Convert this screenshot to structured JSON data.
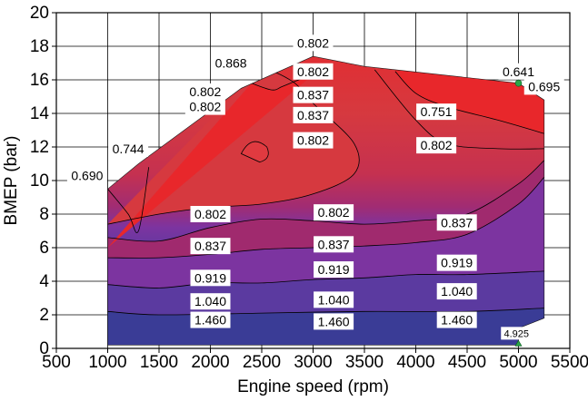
{
  "chart_data": {
    "type": "contour",
    "xlabel": "Engine speed (rpm)",
    "ylabel": "BMEP (bar)",
    "xlim": [
      500,
      5500
    ],
    "ylim": [
      0,
      20
    ],
    "x_ticks": [
      "500",
      "1000",
      "1500",
      "2000",
      "2500",
      "3000",
      "3500",
      "4000",
      "4500",
      "5000",
      "5500"
    ],
    "y_ticks": [
      "0",
      "2",
      "4",
      "6",
      "8",
      "10",
      "12",
      "14",
      "16",
      "18",
      "20"
    ],
    "grid": true,
    "colors": {
      "high": "#e8272b",
      "mid_high": "#d6393f",
      "mid": "#b02a64",
      "mid_low": "#8b2c8a",
      "low_purple": "#7a34a0",
      "low": "#5a3aa0",
      "lowest": "#3a3c96",
      "line": "#000000",
      "marker": "#2aa548"
    },
    "boundary": [
      {
        "x": 1000,
        "y": 9.5
      },
      {
        "x": 1300,
        "y": 11
      },
      {
        "x": 2300,
        "y": 15.5
      },
      {
        "x": 3000,
        "y": 17.4
      },
      {
        "x": 3500,
        "y": 16.8
      },
      {
        "x": 5000,
        "y": 15.8
      },
      {
        "x": 5250,
        "y": 14.8
      },
      {
        "x": 5250,
        "y": 1.8
      },
      {
        "x": 5000,
        "y": 1.2
      },
      {
        "x": 5000,
        "y": 0.2
      },
      {
        "x": 1000,
        "y": 0.2
      }
    ],
    "contours": [
      {
        "level": "1.460",
        "color": "#3a3c96",
        "points": [
          [
            1000,
            2.2
          ],
          [
            1500,
            2.0
          ],
          [
            2500,
            2.1
          ],
          [
            3500,
            2.2
          ],
          [
            4500,
            2.2
          ],
          [
            5250,
            2.4
          ]
        ]
      },
      {
        "level": "1.040",
        "color": "#4b3a9e",
        "points": [
          [
            1000,
            3.8
          ],
          [
            1500,
            3.6
          ],
          [
            2000,
            3.9
          ],
          [
            2500,
            3.9
          ],
          [
            3000,
            4.1
          ],
          [
            3500,
            4.2
          ],
          [
            4000,
            4.4
          ],
          [
            4500,
            4.4
          ],
          [
            5250,
            4.6
          ]
        ]
      },
      {
        "level": "0.919",
        "color": "#6a3aa3",
        "points": [
          [
            1000,
            5.4
          ],
          [
            1500,
            5.4
          ],
          [
            2000,
            5.6
          ],
          [
            2500,
            5.9
          ],
          [
            3000,
            6.0
          ],
          [
            3500,
            6.1
          ],
          [
            4000,
            6.3
          ],
          [
            4500,
            6.8
          ],
          [
            5000,
            8.6
          ],
          [
            5250,
            10.2
          ]
        ]
      },
      {
        "level": "0.837",
        "color": "#8b2c8a",
        "points": [
          [
            1000,
            6.6
          ],
          [
            1500,
            6.4
          ],
          [
            2000,
            7.2
          ],
          [
            2500,
            7.7
          ],
          [
            3000,
            7.6
          ],
          [
            3500,
            7.4
          ],
          [
            4000,
            7.6
          ],
          [
            4500,
            8.0
          ],
          [
            5000,
            9.8
          ],
          [
            5250,
            11.2
          ]
        ]
      },
      {
        "level": "0.802",
        "color": "#b02a64",
        "points": [
          [
            1000,
            7.4
          ],
          [
            1500,
            8.0
          ],
          [
            2000,
            8.4
          ],
          [
            2500,
            8.6
          ],
          [
            3000,
            9.2
          ],
          [
            3400,
            10.4
          ],
          [
            3400,
            12.2
          ],
          [
            3000,
            14.6
          ],
          [
            2800,
            15.9
          ],
          [
            2500,
            16.6
          ],
          [
            2300,
            15.5
          ]
        ]
      },
      {
        "level": "0.802",
        "color": "#b02a64",
        "points": [
          [
            3600,
            16.6
          ],
          [
            4000,
            13.6
          ],
          [
            4300,
            12.2
          ],
          [
            4800,
            11.9
          ],
          [
            5250,
            11.9
          ]
        ]
      },
      {
        "level": "0.751",
        "color": "#d6393f",
        "points": [
          [
            3800,
            16.5
          ],
          [
            4000,
            15.2
          ],
          [
            4300,
            14.4
          ],
          [
            4800,
            13.6
          ],
          [
            5250,
            12.8
          ]
        ]
      },
      {
        "level": "0.868",
        "color": "#7a34a0",
        "points": [
          [
            2300,
            15.5
          ],
          [
            2600,
            16.8
          ],
          [
            2900,
            17.2
          ],
          [
            3000,
            17.4
          ]
        ]
      },
      {
        "level": "0.837",
        "color": "#8b2c8a",
        "points": [
          [
            2400,
            15.8
          ],
          [
            2600,
            15.4
          ],
          [
            2700,
            15.6
          ],
          [
            2900,
            16.1
          ],
          [
            3000,
            16.3
          ]
        ]
      },
      {
        "level": "0.690",
        "color": "#e8272b",
        "points": [
          [
            1000,
            9.5
          ],
          [
            1200,
            8.0
          ],
          [
            1300,
            7.0
          ],
          [
            1400,
            10.8
          ]
        ]
      }
    ],
    "labels": [
      {
        "text": "0.802",
        "x": 3000,
        "y": 18.2
      },
      {
        "text": "0.868",
        "x": 2200,
        "y": 17.0
      },
      {
        "text": "0.802",
        "x": 3000,
        "y": 16.5
      },
      {
        "text": "0.641",
        "x": 5000,
        "y": 16.5
      },
      {
        "text": "0.695",
        "x": 5250,
        "y": 15.6
      },
      {
        "text": "0.802",
        "x": 1950,
        "y": 15.3
      },
      {
        "text": "0.802",
        "x": 1950,
        "y": 14.4
      },
      {
        "text": "0.837",
        "x": 3000,
        "y": 15.1
      },
      {
        "text": "0.837",
        "x": 3000,
        "y": 13.9
      },
      {
        "text": "0.751",
        "x": 4200,
        "y": 14.1
      },
      {
        "text": "0.802",
        "x": 3000,
        "y": 12.4
      },
      {
        "text": "0.802",
        "x": 4200,
        "y": 12.1
      },
      {
        "text": "0.744",
        "x": 1200,
        "y": 11.9
      },
      {
        "text": "0.690",
        "x": 800,
        "y": 10.3
      },
      {
        "text": "0.802",
        "x": 2000,
        "y": 8.0
      },
      {
        "text": "0.802",
        "x": 3200,
        "y": 8.1
      },
      {
        "text": "0.837",
        "x": 4400,
        "y": 7.5
      },
      {
        "text": "0.837",
        "x": 2000,
        "y": 6.1
      },
      {
        "text": "0.837",
        "x": 3200,
        "y": 6.2
      },
      {
        "text": "0.919",
        "x": 4400,
        "y": 5.1
      },
      {
        "text": "0.919",
        "x": 3200,
        "y": 4.7
      },
      {
        "text": "0.919",
        "x": 2000,
        "y": 4.2
      },
      {
        "text": "1.040",
        "x": 4400,
        "y": 3.4
      },
      {
        "text": "1.040",
        "x": 3200,
        "y": 2.9
      },
      {
        "text": "1.040",
        "x": 2000,
        "y": 2.8
      },
      {
        "text": "1.460",
        "x": 4400,
        "y": 1.7
      },
      {
        "text": "1.460",
        "x": 3200,
        "y": 1.6
      },
      {
        "text": "1.460",
        "x": 2000,
        "y": 1.7
      },
      {
        "text": "4.925",
        "x": 4980,
        "y": 0.9,
        "small": true
      }
    ],
    "markers": [
      {
        "x": 5000,
        "y": 15.8
      },
      {
        "x": 5000,
        "y": 0.2
      }
    ]
  }
}
